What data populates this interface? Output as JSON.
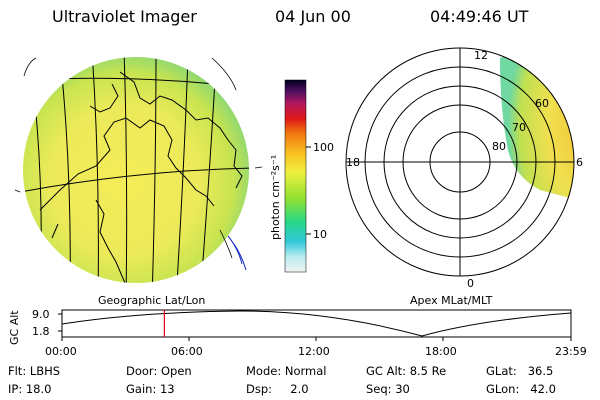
{
  "header": {
    "instrument": "Ultraviolet Imager",
    "date": "04 Jun 00",
    "time": "04:49:46 UT"
  },
  "colorbar": {
    "unit_label": "photon cm⁻²s⁻¹",
    "ticks": [
      "100",
      "10"
    ],
    "scale": "log"
  },
  "geo_panel": {
    "label": "Geographic Lat/Lon"
  },
  "polar_panel": {
    "label": "Apex MLat/MLT",
    "mlt_labels": {
      "top": "12",
      "left": "18",
      "right": "6",
      "bottom": "0"
    },
    "mlat_labels": [
      "60",
      "70",
      "80"
    ]
  },
  "altitude_plot": {
    "ylabel": "GC Alt",
    "yticks": [
      "9.0",
      "1.8"
    ],
    "xticks": [
      "00:00",
      "06:00",
      "12:00",
      "18:00",
      "23:59"
    ],
    "current_time_hours": 4.83,
    "marker_color": "#e8001c"
  },
  "status": {
    "filter": "Flt: LBHS",
    "ip": "IP: 18.0",
    "door": "Door: Open",
    "gain": "Gain: 13",
    "mode": "Mode: Normal",
    "dsp": "Dsp:     2.0",
    "gc_alt": "GC Alt: 8.5 Re",
    "seq": "Seq: 30",
    "glat": "GLat:   36.5",
    "glon": "GLon:   42.0"
  }
}
